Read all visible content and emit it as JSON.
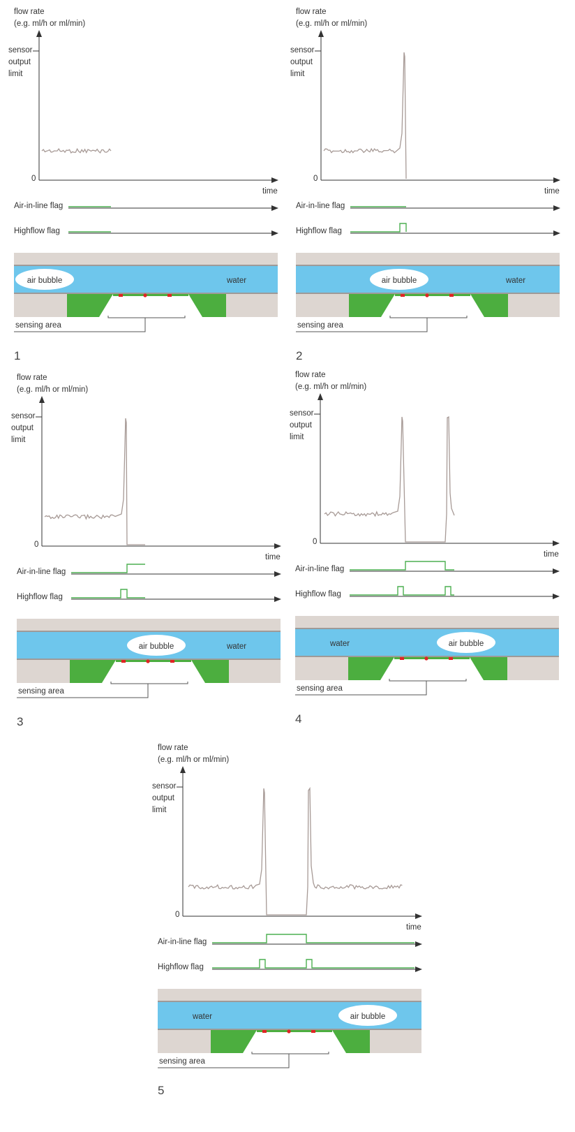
{
  "labels": {
    "flow_rate": "flow rate",
    "flow_units": "(e.g. ml/h or ml/min)",
    "sensor": "sensor",
    "output": "output",
    "limit": "limit",
    "zero": "0",
    "time": "time",
    "air_flag": "Air-in-line flag",
    "high_flag": "Highflow flag",
    "sensing_area": "sensing area",
    "air_bubble": "air bubble",
    "water": "water"
  },
  "panels": [
    {
      "number": "1"
    },
    {
      "number": "2"
    },
    {
      "number": "3"
    },
    {
      "number": "4"
    },
    {
      "number": "5"
    }
  ],
  "colors": {
    "signal": "#a79a96",
    "flag_green": "#4caf50",
    "axis": "#333333",
    "water_blue": "#6ec6ec",
    "channel_grey": "#ddd6d1",
    "sensor_green": "#4cae3f",
    "sensor_red": "#e02424",
    "bubble": "#ffffff"
  }
}
